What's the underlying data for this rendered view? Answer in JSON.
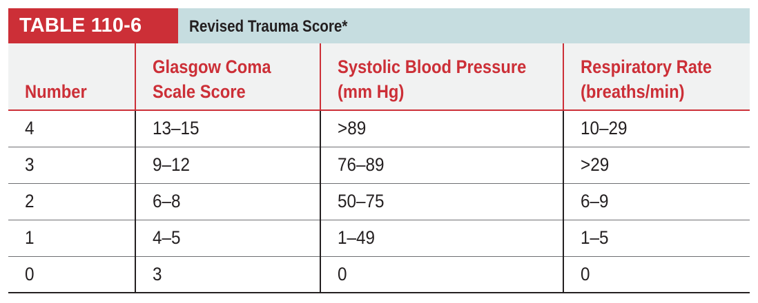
{
  "table": {
    "label": "TABLE 110-6",
    "title": "Revised Trauma Score*",
    "headers": [
      "Number",
      "Glasgow Coma\nScale Score",
      "Systolic Blood Pressure\n(mm Hg)",
      "Respiratory Rate\n(breaths/min)"
    ],
    "header_lines": [
      [
        "Number"
      ],
      [
        "Glasgow Coma",
        "Scale Score"
      ],
      [
        "Systolic Blood Pressure",
        "(mm Hg)"
      ],
      [
        "Respiratory Rate",
        "(breaths/min)"
      ]
    ],
    "rows": [
      [
        "4",
        "13–15",
        ">89",
        "10–29"
      ],
      [
        "3",
        "9–12",
        "76–89",
        ">29"
      ],
      [
        "2",
        "6–8",
        "50–75",
        "6–9"
      ],
      [
        "1",
        "4–5",
        "1–49",
        "1–5"
      ],
      [
        "0",
        "3",
        "0",
        "0"
      ]
    ]
  },
  "colors": {
    "accent_red": "#cc2f37",
    "title_band": "#c6dde0",
    "header_background": "#f1f2f2",
    "text": "#231f20"
  }
}
